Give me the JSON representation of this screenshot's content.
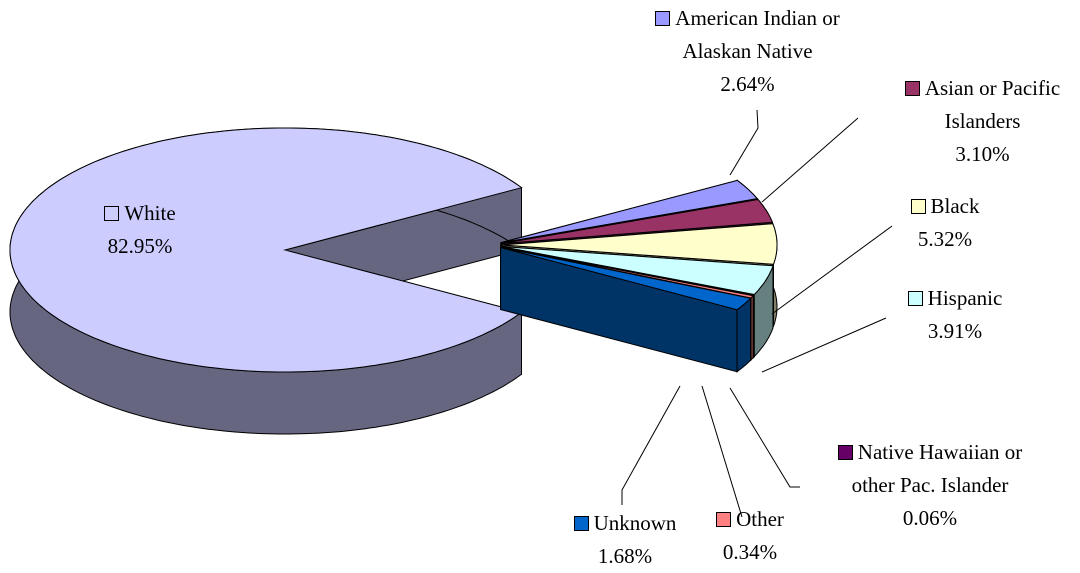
{
  "chart_data": {
    "type": "pie",
    "categories": [
      "White",
      "American Indian or Alaskan Native",
      "Asian or Pacific Islanders",
      "Black",
      "Hispanic",
      "Native Hawaiian or other Pac. Islander",
      "Other",
      "Unknown"
    ],
    "values": [
      82.95,
      2.64,
      3.1,
      5.32,
      3.91,
      0.06,
      0.34,
      1.68
    ],
    "value_labels": [
      "82.95%",
      "2.64%",
      "3.10%",
      "5.32%",
      "3.91%",
      "0.06%",
      "0.34%",
      "1.68%"
    ],
    "colors": [
      "#ccccff",
      "#9999ff",
      "#993366",
      "#ffffcc",
      "#ccffff",
      "#660066",
      "#ff8080",
      "#0066cc"
    ]
  }
}
